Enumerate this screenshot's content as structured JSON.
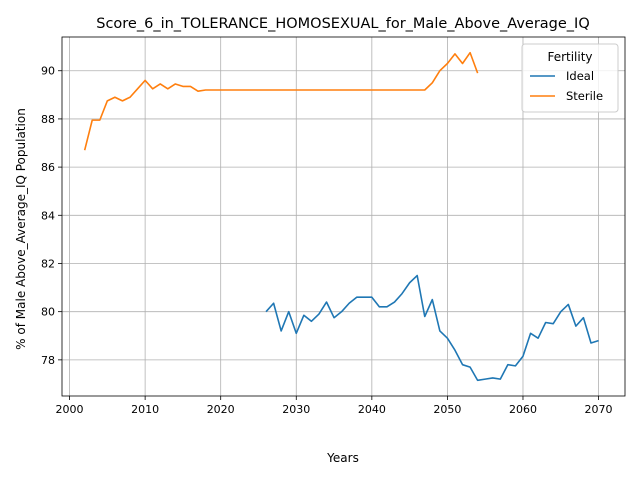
{
  "chart_data": {
    "type": "line",
    "title": "Score_6_in_TOLERANCE_HOMOSEXUAL_for_Male_Above_Average_IQ",
    "xlabel": "Years",
    "ylabel": "% of Male Above_Average_IQ Population",
    "xlim": [
      1999,
      2073.5
    ],
    "ylim": [
      76.5,
      91.4
    ],
    "xticks": [
      2000,
      2010,
      2020,
      2030,
      2040,
      2050,
      2060,
      2070
    ],
    "yticks": [
      78,
      80,
      82,
      84,
      86,
      88,
      90
    ],
    "grid": true,
    "legend": {
      "title": "Fertility",
      "placement": "top-right"
    },
    "series": [
      {
        "name": "Ideal",
        "color": "#1f77b4",
        "x": [
          2026,
          2027,
          2028,
          2029,
          2030,
          2031,
          2032,
          2033,
          2034,
          2035,
          2036,
          2037,
          2038,
          2039,
          2040,
          2041,
          2042,
          2043,
          2044,
          2045,
          2046,
          2047,
          2048,
          2049,
          2050,
          2051,
          2052,
          2053,
          2054,
          2055,
          2056,
          2057,
          2058,
          2059,
          2060,
          2061,
          2062,
          2063,
          2064,
          2065,
          2066,
          2067,
          2068,
          2069,
          2070
        ],
        "y": [
          80.0,
          80.35,
          79.2,
          80.0,
          79.1,
          79.85,
          79.6,
          79.9,
          80.4,
          79.75,
          80.0,
          80.35,
          80.6,
          80.6,
          80.6,
          80.2,
          80.2,
          80.4,
          80.75,
          81.2,
          81.5,
          79.8,
          80.5,
          79.2,
          78.9,
          78.4,
          77.8,
          77.7,
          77.15,
          77.2,
          77.25,
          77.2,
          77.8,
          77.75,
          78.15,
          79.1,
          78.9,
          79.55,
          79.5,
          80.0,
          80.3,
          79.4,
          79.75,
          78.7,
          78.8
        ]
      },
      {
        "name": "Sterile",
        "color": "#ff7f0e",
        "x": [
          2002,
          2003,
          2004,
          2005,
          2006,
          2007,
          2008,
          2009,
          2010,
          2011,
          2012,
          2013,
          2014,
          2015,
          2016,
          2017,
          2018,
          2019,
          2020,
          2021,
          2022,
          2023,
          2024,
          2025,
          2026,
          2027,
          2028,
          2029,
          2030,
          2031,
          2032,
          2033,
          2034,
          2035,
          2036,
          2037,
          2038,
          2039,
          2040,
          2041,
          2042,
          2043,
          2044,
          2045,
          2046,
          2047,
          2048,
          2049,
          2050,
          2051,
          2052,
          2053,
          2054
        ],
        "y": [
          86.7,
          87.95,
          87.95,
          88.75,
          88.9,
          88.75,
          88.9,
          89.25,
          89.6,
          89.25,
          89.45,
          89.25,
          89.45,
          89.35,
          89.35,
          89.15,
          89.2,
          89.2,
          89.2,
          89.2,
          89.2,
          89.2,
          89.2,
          89.2,
          89.2,
          89.2,
          89.2,
          89.2,
          89.2,
          89.2,
          89.2,
          89.2,
          89.2,
          89.2,
          89.2,
          89.2,
          89.2,
          89.2,
          89.2,
          89.2,
          89.2,
          89.2,
          89.2,
          89.2,
          89.2,
          89.2,
          89.5,
          90.0,
          90.3,
          90.7,
          90.3,
          90.75,
          89.9
        ]
      }
    ]
  }
}
